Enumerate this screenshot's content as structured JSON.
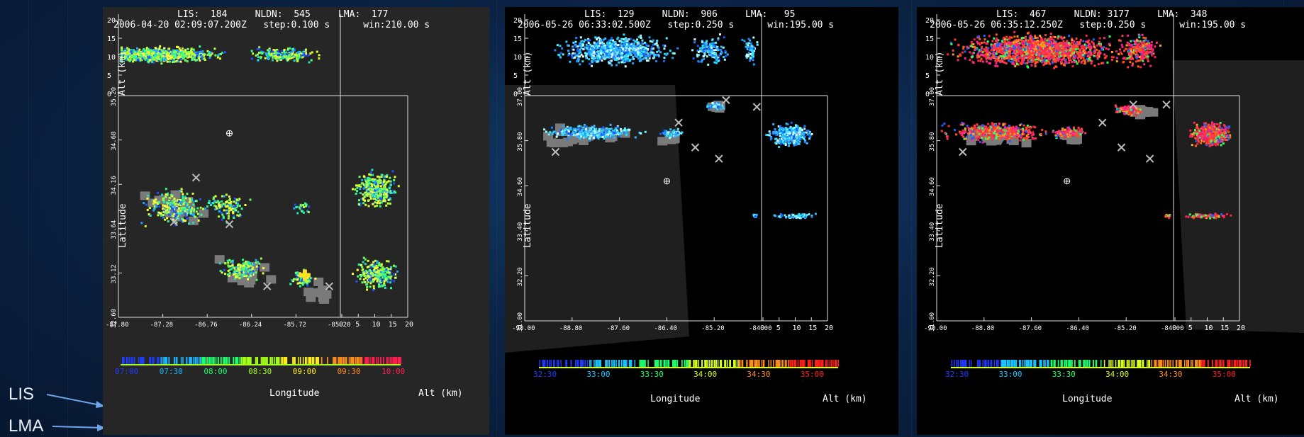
{
  "side_labels": {
    "lis": "LIS",
    "lma": "LMA"
  },
  "colors": {
    "grid_line": "#e0e0e0",
    "text": "#ffffff",
    "lis_gray": "#7a7a7a",
    "nldn_x": "#bdbdbd"
  },
  "panels": [
    {
      "header": {
        "line1": "LIS:  184     NLDN:  545     LMA:  177",
        "line2": "2006-04-20 02:09:07.200Z   step:0.100 s      win:210.00 s"
      },
      "xlabel": "Longitude",
      "ylabel": "Latitude",
      "alt_label": "Alt (km)",
      "lon_ticks": [
        "-87.80",
        "-87.28",
        "-86.76",
        "-86.24",
        "-85.72",
        "-85.20"
      ],
      "lat_ticks": [
        "32.60",
        "33.12",
        "33.64",
        "34.16",
        "34.68",
        "35.20"
      ],
      "alt_ticks": [
        "0",
        "5",
        "10",
        "15",
        "20"
      ],
      "time_ticks": [
        "07:00",
        "07:30",
        "08:00",
        "08:30",
        "09:00",
        "09:30",
        "10:00"
      ],
      "time_colors": [
        "#1e3cff",
        "#19b7ff",
        "#19ff6e",
        "#a3ff19",
        "#ffee19",
        "#ff8c19",
        "#ff1e4d"
      ],
      "palette": "warm-yellow"
    },
    {
      "header": {
        "line1": "LIS:  129     NLDN:  906     LMA:   95",
        "line2": "2006-05-26 06:33:02.500Z   step:0.250 s      win:195.00 s"
      },
      "xlabel": "Longitude",
      "ylabel": "Latitude",
      "alt_label": "Alt (km)",
      "lon_ticks": [
        "-90.00",
        "-88.80",
        "-87.60",
        "-86.40",
        "-85.20",
        "-84.00"
      ],
      "lat_ticks": [
        "31.00",
        "32.20",
        "33.40",
        "34.60",
        "35.80",
        "37.00"
      ],
      "alt_ticks": [
        "0",
        "5",
        "10",
        "15",
        "20"
      ],
      "time_ticks": [
        "32:30",
        "33:00",
        "33:30",
        "34:00",
        "34:30",
        "35:00"
      ],
      "time_colors": [
        "#1e3cff",
        "#19c4ff",
        "#19ff6e",
        "#d7ff19",
        "#ff8c19",
        "#ff1e1e"
      ],
      "palette": "cyan"
    },
    {
      "header": {
        "line1": "LIS:  467     NLDN: 3177     LMA:  348",
        "line2": "2006-05-26 06:35:12.250Z   step:0.250 s      win:195.00 s"
      },
      "xlabel": "Longitude",
      "ylabel": "Latitude",
      "alt_label": "Alt (km)",
      "lon_ticks": [
        "-90.00",
        "-88.80",
        "-87.60",
        "-86.40",
        "-85.20",
        "-84.00"
      ],
      "lat_ticks": [
        "31.00",
        "32.20",
        "33.40",
        "34.60",
        "35.80",
        "37.00"
      ],
      "alt_ticks": [
        "0",
        "5",
        "10",
        "15",
        "20"
      ],
      "time_ticks": [
        "32:30",
        "33:00",
        "33:30",
        "34:00",
        "34:30",
        "35:00"
      ],
      "time_colors": [
        "#1e3cff",
        "#19c4ff",
        "#19ff6e",
        "#d7ff19",
        "#ff8c19",
        "#ff1e1e"
      ],
      "palette": "hot-red"
    }
  ],
  "chart_data": [
    {
      "type": "scatter",
      "title": "LIS: 184  NLDN: 545  LMA: 177",
      "subtitle": "2006-04-20 02:09:07.200Z  step:0.100 s  win:210.00 s",
      "xlabel": "Longitude",
      "ylabel": "Latitude",
      "xlim": [
        -87.8,
        -85.2
      ],
      "ylim": [
        32.6,
        35.2
      ],
      "alt_range_km": [
        0,
        20
      ],
      "counts": {
        "LIS": 184,
        "NLDN": 545,
        "LMA": 177
      }
    },
    {
      "type": "scatter",
      "title": "LIS: 129  NLDN: 906  LMA: 95",
      "subtitle": "2006-05-26 06:33:02.500Z  step:0.250 s  win:195.00 s",
      "xlabel": "Longitude",
      "ylabel": "Latitude",
      "xlim": [
        -90.0,
        -84.0
      ],
      "ylim": [
        31.0,
        37.0
      ],
      "alt_range_km": [
        0,
        20
      ],
      "counts": {
        "LIS": 129,
        "NLDN": 906,
        "LMA": 95
      }
    },
    {
      "type": "scatter",
      "title": "LIS: 467  NLDN: 3177  LMA: 348",
      "subtitle": "2006-05-26 06:35:12.250Z  step:0.250 s  win:195.00 s",
      "xlabel": "Longitude",
      "ylabel": "Latitude",
      "xlim": [
        -90.0,
        -84.0
      ],
      "ylim": [
        31.0,
        37.0
      ],
      "alt_range_km": [
        0,
        20
      ],
      "counts": {
        "LIS": 467,
        "NLDN": 3177,
        "LMA": 348
      }
    }
  ]
}
